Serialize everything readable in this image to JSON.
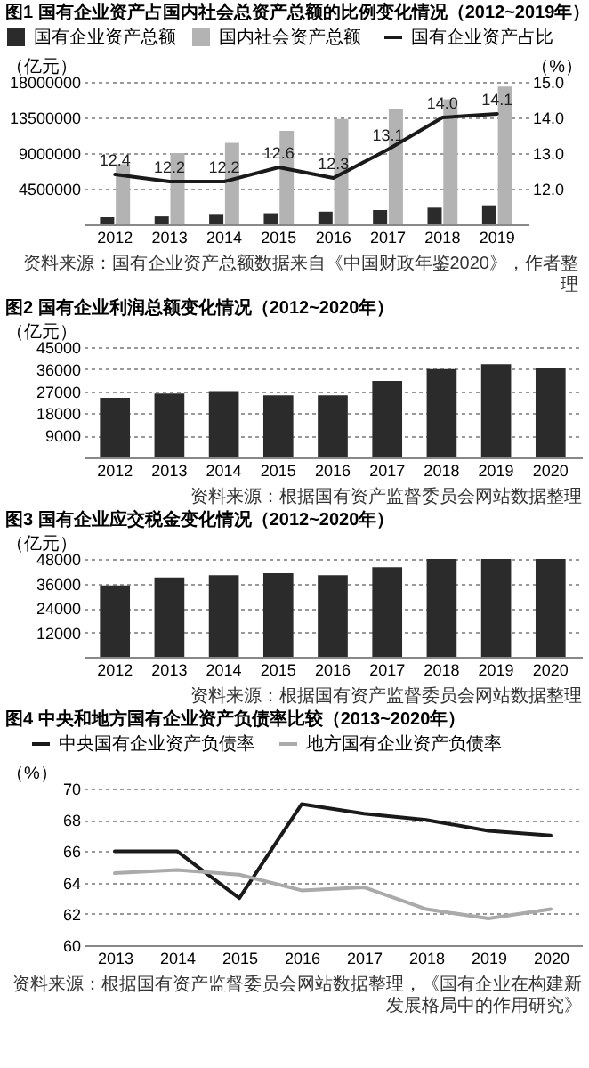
{
  "chart_data": [
    {
      "type": "bar",
      "title": "图1  国有企业资产占国内社会总资产总额的比例变化情况（2012~2019年）",
      "ylabel": "（亿元）",
      "y2label": "（%）",
      "categories": [
        "2012",
        "2013",
        "2014",
        "2015",
        "2016",
        "2017",
        "2018",
        "2019"
      ],
      "series": [
        {
          "name": "国有企业资产总额",
          "color": "#2b2b2b",
          "values": [
            900000,
            1000000,
            1200000,
            1400000,
            1600000,
            1800000,
            2100000,
            2400000
          ]
        },
        {
          "name": "国内社会资产总额",
          "color": "#b3b3b3",
          "values": [
            7600000,
            9000000,
            10300000,
            11800000,
            13300000,
            14600000,
            15800000,
            17400000
          ]
        },
        {
          "name": "国有企业资产占比",
          "type": "line",
          "axis": "y2",
          "color": "#1a1a1a",
          "values": [
            12.4,
            12.2,
            12.2,
            12.6,
            12.3,
            13.1,
            14.0,
            14.1
          ],
          "value_labels": [
            "12.4",
            "12.2",
            "12.2",
            "12.6",
            "12.3",
            "13.1",
            "14.0",
            "14.1"
          ]
        }
      ],
      "ylim": [
        0,
        18000000
      ],
      "yticks": [
        4500000,
        9000000,
        13500000,
        18000000
      ],
      "y2lim": [
        11,
        15
      ],
      "y2ticks": [
        {
          "value": 12,
          "label": "12.0"
        },
        {
          "value": 13,
          "label": "13.0"
        },
        {
          "value": 14,
          "label": "14.0"
        },
        {
          "value": 15,
          "label": "15.0"
        }
      ],
      "grid": "y",
      "legend": "top",
      "annotations": [
        "资料来源：国有企业资产总额数据来自《中国财政年鉴2020》，作者整理"
      ]
    },
    {
      "type": "bar",
      "title": "图2  国有企业利润总额变化情况（2012~2020年）",
      "ylabel": "（亿元）",
      "categories": [
        "2012",
        "2013",
        "2014",
        "2015",
        "2016",
        "2017",
        "2018",
        "2019",
        "2020"
      ],
      "values": [
        24300,
        26000,
        27000,
        25300,
        25300,
        31200,
        36000,
        38000,
        36500
      ],
      "color": "#2b2b2b",
      "ylim": [
        0,
        45000
      ],
      "yticks": [
        9000,
        18000,
        27000,
        36000,
        45000
      ],
      "grid": "y",
      "annotations": [
        "资料来源：根据国有资产监督委员会网站数据整理"
      ]
    },
    {
      "type": "bar",
      "title": "图3  国有企业应交税金变化情况（2012~2020年）",
      "ylabel": "（亿元）",
      "categories": [
        "2012",
        "2013",
        "2014",
        "2015",
        "2016",
        "2017",
        "2018",
        "2019",
        "2020"
      ],
      "values": [
        35000,
        39000,
        40000,
        41000,
        40000,
        44000,
        48000,
        48000,
        48000
      ],
      "color": "#2b2b2b",
      "ylim": [
        0,
        48000
      ],
      "yticks": [
        12000,
        24000,
        36000,
        48000
      ],
      "grid": "y",
      "annotations": [
        "资料来源：根据国有资产监督委员会网站数据整理"
      ]
    },
    {
      "type": "line",
      "title": "图4  中央和地方国有企业资产负债率比较（2013~2020年）",
      "ylabel": "（%）",
      "categories": [
        "2013",
        "2014",
        "2015",
        "2016",
        "2017",
        "2018",
        "2019",
        "2020"
      ],
      "series": [
        {
          "name": "中央国有企业资产负债率",
          "color": "#1a1a1a",
          "values": [
            66.0,
            66.0,
            63.0,
            69.0,
            68.4,
            68.0,
            67.3,
            67.0
          ]
        },
        {
          "name": "地方国有企业资产负债率",
          "color": "#aaaaaa",
          "values": [
            64.6,
            64.8,
            64.5,
            63.5,
            63.7,
            62.3,
            61.7,
            62.3
          ]
        }
      ],
      "ylim": [
        60,
        70
      ],
      "yticks": [
        60,
        62,
        64,
        66,
        68,
        70
      ],
      "grid": "y",
      "legend": "top",
      "annotations": [
        "资料来源：根据国有资产监督委员会网站数据整理，《国有企业在构建新发展格局中的作用研究》"
      ]
    }
  ]
}
